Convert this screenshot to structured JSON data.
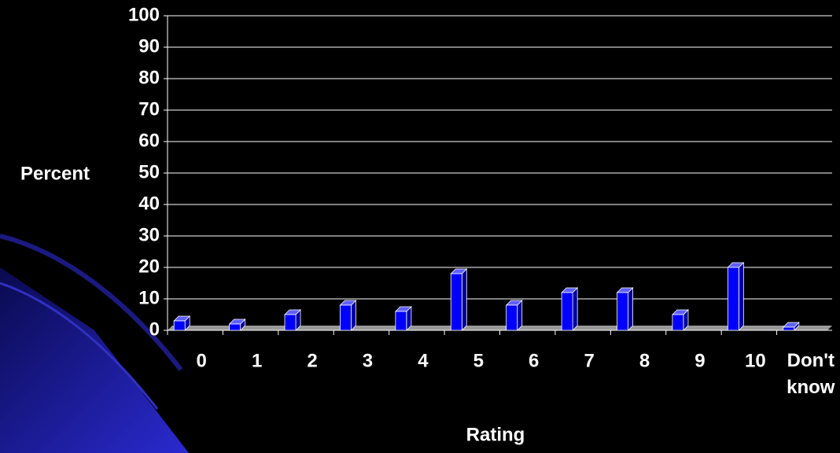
{
  "chart_data": {
    "type": "bar",
    "categories": [
      "0",
      "1",
      "2",
      "3",
      "4",
      "5",
      "6",
      "7",
      "8",
      "9",
      "10",
      "Don't know"
    ],
    "values": [
      3,
      2,
      5,
      8,
      6,
      18,
      8,
      12,
      12,
      5,
      20,
      1
    ],
    "color": "#0000ff",
    "y_label": "Percent",
    "x_label": "Rating",
    "ylim": [
      0,
      100
    ],
    "yticks": [
      0,
      10,
      20,
      30,
      40,
      50,
      60,
      70,
      80,
      90,
      100
    ],
    "grid": true
  }
}
